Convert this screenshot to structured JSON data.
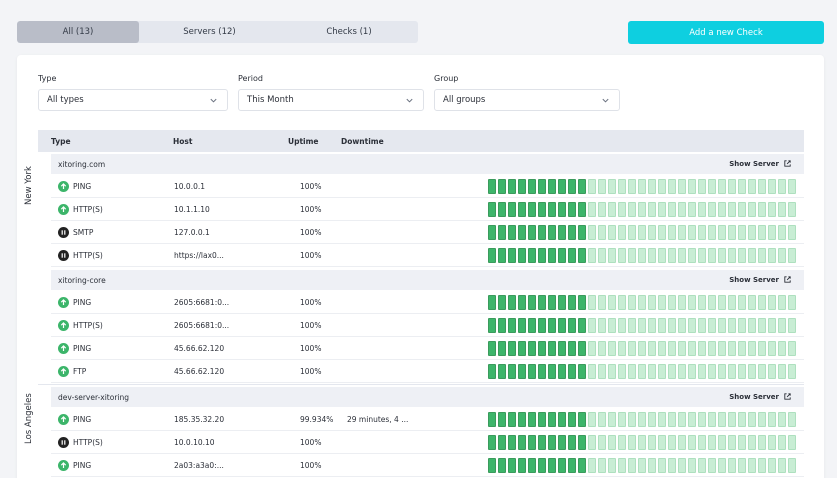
{
  "tabs": [
    {
      "label": "All (13)"
    },
    {
      "label": "Servers (12)"
    },
    {
      "label": "Checks (1)"
    }
  ],
  "add_button": "Add a new Check",
  "filters": {
    "type": {
      "label": "Type",
      "value": "All types"
    },
    "period": {
      "label": "Period",
      "value": "This Month"
    },
    "group": {
      "label": "Group",
      "value": "All groups"
    }
  },
  "columns": [
    "Type",
    "Host",
    "Uptime",
    "Downtime"
  ],
  "regions": [
    "New York",
    "Los Angeles"
  ],
  "show_server": "Show Server",
  "servers": [
    {
      "name": "xitoring.com"
    },
    {
      "name": "xitoring-core"
    },
    {
      "name": "dev-server-xitoring"
    }
  ],
  "checks": [
    {
      "type": "PING",
      "host": "10.0.0.1",
      "uptime": "100%",
      "downtime": "",
      "status": "up"
    },
    {
      "type": "HTTP(S)",
      "host": "10.1.1.10",
      "uptime": "100%",
      "downtime": "",
      "status": "up"
    },
    {
      "type": "SMTP",
      "host": "127.0.0.1",
      "uptime": "100%",
      "downtime": "",
      "status": "paused"
    },
    {
      "type": "HTTP(S)",
      "host": "https://lax0...",
      "uptime": "100%",
      "downtime": "",
      "status": "paused"
    },
    {
      "type": "PING",
      "host": "2605:6681:0...",
      "uptime": "100%",
      "downtime": "",
      "status": "up"
    },
    {
      "type": "HTTP(S)",
      "host": "2605:6681:0...",
      "uptime": "100%",
      "downtime": "",
      "status": "up"
    },
    {
      "type": "PING",
      "host": "45.66.62.120",
      "uptime": "100%",
      "downtime": "",
      "status": "up"
    },
    {
      "type": "FTP",
      "host": "45.66.62.120",
      "uptime": "100%",
      "downtime": "",
      "status": "up"
    },
    {
      "type": "PING",
      "host": "185.35.32.20",
      "uptime": "99.934%",
      "downtime": "29 minutes, 4 ...",
      "status": "up"
    },
    {
      "type": "HTTP(S)",
      "host": "10.0.10.10",
      "uptime": "100%",
      "downtime": "",
      "status": "paused"
    },
    {
      "type": "PING",
      "host": "2a03:a3a0:...",
      "uptime": "100%",
      "downtime": "",
      "status": "up"
    }
  ],
  "history": {
    "days_total": 31,
    "days_elapsed": 10
  },
  "colors": {
    "accent": "#0ecfe0",
    "up": "#3db56a",
    "up_light": "#c8edd4",
    "paused": "#222222"
  }
}
